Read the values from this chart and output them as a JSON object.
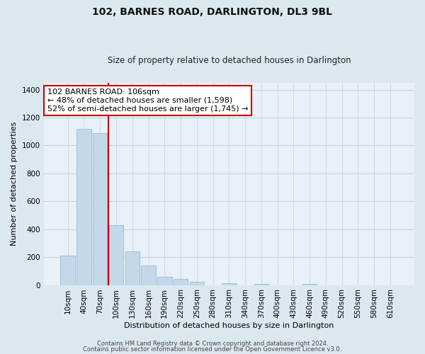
{
  "title": "102, BARNES ROAD, DARLINGTON, DL3 9BL",
  "subtitle": "Size of property relative to detached houses in Darlington",
  "xlabel": "Distribution of detached houses by size in Darlington",
  "ylabel": "Number of detached properties",
  "bar_labels": [
    "10sqm",
    "40sqm",
    "70sqm",
    "100sqm",
    "130sqm",
    "160sqm",
    "190sqm",
    "220sqm",
    "250sqm",
    "280sqm",
    "310sqm",
    "340sqm",
    "370sqm",
    "400sqm",
    "430sqm",
    "460sqm",
    "490sqm",
    "520sqm",
    "550sqm",
    "580sqm",
    "610sqm"
  ],
  "bar_values": [
    210,
    1120,
    1090,
    430,
    240,
    140,
    60,
    45,
    22,
    0,
    14,
    0,
    8,
    0,
    0,
    10,
    0,
    0,
    0,
    0,
    0
  ],
  "bar_color": "#c5d8ea",
  "bar_edge_color": "#9ab8cf",
  "marker_bin_index": 3,
  "marker_color": "#cc0000",
  "annotation_title": "102 BARNES ROAD: 106sqm",
  "annotation_line1": "← 48% of detached houses are smaller (1,598)",
  "annotation_line2": "52% of semi-detached houses are larger (1,745) →",
  "annotation_box_color": "#ffffff",
  "annotation_box_edge": "#cc0000",
  "ylim": [
    0,
    1450
  ],
  "yticks": [
    0,
    200,
    400,
    600,
    800,
    1000,
    1200,
    1400
  ],
  "footer1": "Contains HM Land Registry data © Crown copyright and database right 2024.",
  "footer2": "Contains public sector information licensed under the Open Government Licence v3.0.",
  "bg_color": "#dce8f0",
  "plot_bg_color": "#e8f0f8",
  "grid_color": "#c0d0e0",
  "title_fontsize": 10,
  "subtitle_fontsize": 8.5,
  "axis_label_fontsize": 8,
  "tick_fontsize": 7.5,
  "annotation_fontsize": 8,
  "footer_fontsize": 6
}
